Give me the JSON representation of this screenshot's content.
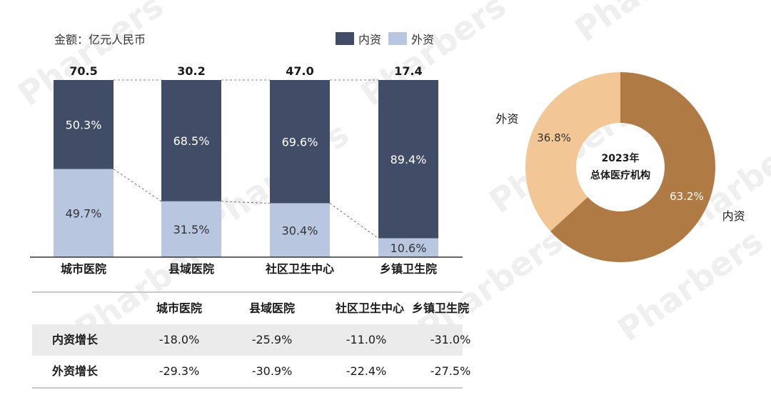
{
  "unit_label": "金额：亿元人民币",
  "legend": [
    {
      "label": "内资",
      "color": "#414d67"
    },
    {
      "label": "外资",
      "color": "#b8c6e0"
    }
  ],
  "chart_data": [
    {
      "type": "bar",
      "stacked": true,
      "normalized": true,
      "categories": [
        "城市医院",
        "县域医院",
        "社区卫生中心",
        "乡镇卫生院"
      ],
      "totals": [
        "70.5",
        "30.2",
        "47.0",
        "17.4"
      ],
      "series": [
        {
          "name": "内资",
          "values": [
            50.3,
            68.5,
            69.6,
            89.4
          ],
          "labels": [
            "50.3%",
            "68.5%",
            "69.6%",
            "89.4%"
          ],
          "color": "#414d67"
        },
        {
          "name": "外资",
          "values": [
            49.7,
            31.5,
            30.4,
            10.6
          ],
          "labels": [
            "49.7%",
            "31.5%",
            "30.4%",
            "10.6%"
          ],
          "color": "#b8c6e0"
        }
      ],
      "ylim": [
        0,
        100
      ]
    },
    {
      "type": "pie",
      "donut": true,
      "center_label": [
        "2023年",
        "总体医疗机构"
      ],
      "slices": [
        {
          "name": "内资",
          "value": 63.2,
          "label": "63.2%",
          "color": "#b07a45"
        },
        {
          "name": "外资",
          "value": 36.8,
          "label": "36.8%",
          "color": "#f3c795"
        }
      ]
    },
    {
      "type": "table",
      "columns": [
        "城市医院",
        "县域医院",
        "社区卫生中心",
        "乡镇卫生院"
      ],
      "rows": [
        {
          "label": "内资增长",
          "values": [
            "-18.0%",
            "-25.9%",
            "-11.0%",
            "-31.0%"
          ]
        },
        {
          "label": "外资增长",
          "values": [
            "-29.3%",
            "-30.9%",
            "-22.4%",
            "-27.5%"
          ]
        }
      ]
    }
  ],
  "watermark": "Pharbers"
}
